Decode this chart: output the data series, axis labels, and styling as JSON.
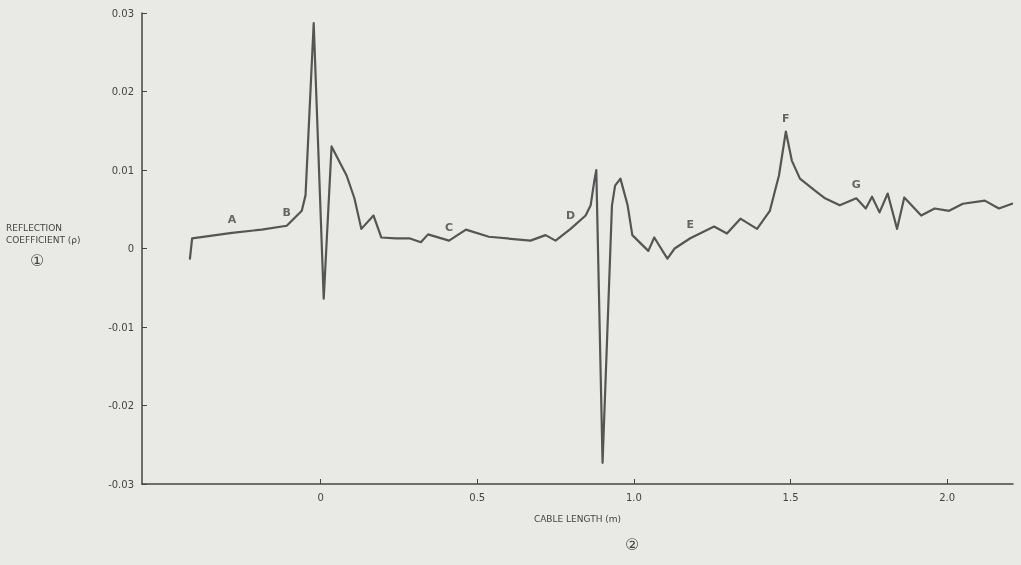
{
  "chart_data": {
    "type": "line",
    "xlabel": "CABLE LENGTH (m)",
    "ylabel": "REFLECTION\nCOEFFICIENT (ρ)",
    "annotations": [
      "①",
      "②",
      {
        "text": "A",
        "x": -0.283,
        "y": 0.002
      },
      {
        "text": "B",
        "x": -0.108,
        "y": 0.0029
      },
      {
        "text": "C",
        "x": 0.41,
        "y": 0.001
      },
      {
        "text": "D",
        "x": 0.798,
        "y": 0.0025
      },
      {
        "text": "E",
        "x": 1.18,
        "y": 0.0013
      },
      {
        "text": "F",
        "x": 1.485,
        "y": 0.0149
      },
      {
        "text": "G",
        "x": 1.71,
        "y": 0.0064
      }
    ],
    "series": [
      {
        "color": "#555555",
        "x": [
          -0.417,
          -0.41,
          -0.283,
          -0.188,
          -0.108,
          -0.06,
          -0.048,
          -0.022,
          0.01,
          0.035,
          0.083,
          0.108,
          0.13,
          0.169,
          0.194,
          0.24,
          0.283,
          0.32,
          0.343,
          0.41,
          0.464,
          0.537,
          0.67,
          0.718,
          0.75,
          0.798,
          0.846,
          0.862,
          0.874,
          0.88,
          0.9,
          0.93,
          0.94,
          0.957,
          0.98,
          0.995,
          1.046,
          1.065,
          1.107,
          1.13,
          1.18,
          1.256,
          1.297,
          1.34,
          1.393,
          1.434,
          1.463,
          1.485,
          1.504,
          1.53,
          1.577,
          1.61,
          1.657,
          1.71,
          1.74,
          1.76,
          1.784,
          1.81,
          1.84,
          1.863,
          1.917,
          1.96,
          2.006,
          2.05,
          2.12,
          2.165,
          2.207
        ],
        "values": [
          -0.0013,
          0.0013,
          0.002,
          0.0024,
          0.0029,
          0.0048,
          0.0068,
          0.0287,
          -0.0064,
          0.013,
          0.0093,
          0.0064,
          0.0025,
          0.0042,
          0.0014,
          0.0013,
          0.0013,
          0.0008,
          0.0018,
          0.001,
          0.0024,
          0.0015,
          0.001,
          0.0017,
          0.001,
          0.0025,
          0.0042,
          0.0055,
          0.0087,
          0.01,
          -0.0273,
          0.0055,
          0.008,
          0.0089,
          0.0055,
          0.0017,
          -0.0003,
          0.0014,
          -0.0013,
          0,
          0.0013,
          0.0028,
          0.0019,
          0.0038,
          0.0025,
          0.0048,
          0.0093,
          0.0149,
          0.0112,
          0.0089,
          0.0074,
          0.0064,
          0.0055,
          0.0064,
          0.0051,
          0.0066,
          0.0046,
          0.007,
          0.0025,
          0.0065,
          0.0042,
          0.0051,
          0.0048,
          0.0057,
          0.0061,
          0.0051,
          0.0057
        ]
      }
    ],
    "xlim": [
      -0.57,
      2.21
    ],
    "xticks": [
      0,
      0.5,
      {
        "value": 1,
        "label": "1.0"
      },
      1.5,
      {
        "value": 2,
        "label": "2.0"
      }
    ],
    "ylim": [
      -0.03,
      0.03
    ],
    "yticks": [
      -0.03,
      -0.02,
      -0.01,
      0,
      0.01,
      0.02,
      0.03
    ],
    "grid": false,
    "marker": "none",
    "line_style": "solid"
  }
}
